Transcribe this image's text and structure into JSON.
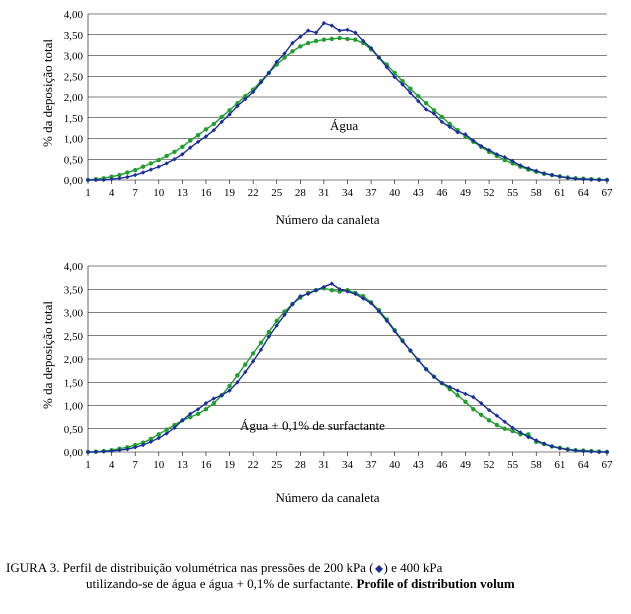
{
  "shared": {
    "x_axis_title": "Número da canaleta",
    "y_axis_title": "% da deposição total",
    "x_categories": [
      1,
      2,
      3,
      4,
      5,
      6,
      7,
      8,
      9,
      10,
      11,
      12,
      13,
      14,
      15,
      16,
      17,
      18,
      19,
      20,
      21,
      22,
      23,
      24,
      25,
      26,
      27,
      28,
      29,
      30,
      31,
      32,
      33,
      34,
      35,
      36,
      37,
      38,
      39,
      40,
      41,
      42,
      43,
      44,
      45,
      46,
      47,
      48,
      49,
      50,
      51,
      52,
      53,
      54,
      55,
      56,
      57,
      58,
      59,
      60,
      61,
      62,
      63,
      64,
      65,
      66,
      67
    ],
    "x_tick_labels": [
      "1",
      "4",
      "7",
      "10",
      "13",
      "16",
      "19",
      "22",
      "25",
      "28",
      "31",
      "34",
      "37",
      "40",
      "43",
      "46",
      "49",
      "52",
      "55",
      "58",
      "61",
      "64",
      "67"
    ],
    "x_tick_positions": [
      1,
      4,
      7,
      10,
      13,
      16,
      19,
      22,
      25,
      28,
      31,
      34,
      37,
      40,
      43,
      46,
      49,
      52,
      55,
      58,
      61,
      64,
      67
    ],
    "y_tick_labels": [
      "0,00",
      "0,50",
      "1,00",
      "1,50",
      "2,00",
      "2,50",
      "3,00",
      "3,50",
      "4,00"
    ],
    "y_tick_values": [
      0.0,
      0.5,
      1.0,
      1.5,
      2.0,
      2.5,
      3.0,
      3.5,
      4.0
    ],
    "ylim": [
      0.0,
      4.0
    ],
    "xlim": [
      1,
      67
    ],
    "grid_color": "#000000",
    "grid_width": 0.6,
    "background_color": "#ffffff",
    "line_width": 1.4,
    "marker_size": 2.2,
    "label_fontsize": 13,
    "tick_fontsize": 11,
    "series_style": {
      "blue": {
        "name": "200 kPa",
        "color": "#1b2e9b",
        "marker": "diamond"
      },
      "green": {
        "name": "400 kPa",
        "color": "#1f9e2e",
        "marker": "circle"
      }
    }
  },
  "chart1": {
    "type": "line",
    "inner_label": "Água",
    "series": {
      "blue": [
        0.0,
        0.0,
        0.0,
        0.02,
        0.04,
        0.07,
        0.12,
        0.18,
        0.25,
        0.32,
        0.4,
        0.5,
        0.62,
        0.78,
        0.92,
        1.05,
        1.2,
        1.4,
        1.58,
        1.78,
        1.95,
        2.12,
        2.35,
        2.58,
        2.85,
        3.05,
        3.3,
        3.45,
        3.6,
        3.55,
        3.78,
        3.72,
        3.6,
        3.62,
        3.55,
        3.35,
        3.18,
        2.95,
        2.72,
        2.48,
        2.3,
        2.1,
        1.9,
        1.7,
        1.6,
        1.4,
        1.28,
        1.15,
        1.1,
        0.95,
        0.82,
        0.72,
        0.62,
        0.55,
        0.45,
        0.35,
        0.28,
        0.22,
        0.16,
        0.12,
        0.08,
        0.05,
        0.03,
        0.02,
        0.01,
        0.0,
        0.0
      ],
      "green": [
        0.0,
        0.02,
        0.04,
        0.08,
        0.12,
        0.18,
        0.24,
        0.32,
        0.4,
        0.48,
        0.58,
        0.68,
        0.8,
        0.95,
        1.08,
        1.22,
        1.35,
        1.52,
        1.68,
        1.85,
        2.02,
        2.18,
        2.38,
        2.58,
        2.78,
        2.95,
        3.1,
        3.22,
        3.3,
        3.35,
        3.38,
        3.4,
        3.42,
        3.4,
        3.38,
        3.3,
        3.15,
        2.95,
        2.78,
        2.58,
        2.38,
        2.2,
        2.02,
        1.85,
        1.68,
        1.52,
        1.35,
        1.2,
        1.05,
        0.92,
        0.8,
        0.68,
        0.58,
        0.48,
        0.4,
        0.32,
        0.25,
        0.2,
        0.15,
        0.12,
        0.09,
        0.06,
        0.04,
        0.03,
        0.02,
        0.01,
        0.0
      ]
    }
  },
  "chart2": {
    "type": "line",
    "inner_label": "Água + 0,1% de surfactante",
    "series": {
      "blue": [
        0.0,
        0.0,
        0.01,
        0.02,
        0.04,
        0.06,
        0.1,
        0.15,
        0.22,
        0.3,
        0.4,
        0.52,
        0.68,
        0.82,
        0.92,
        1.05,
        1.15,
        1.22,
        1.32,
        1.5,
        1.72,
        1.95,
        2.2,
        2.48,
        2.72,
        2.95,
        3.18,
        3.35,
        3.4,
        3.48,
        3.55,
        3.62,
        3.5,
        3.45,
        3.4,
        3.3,
        3.2,
        3.02,
        2.82,
        2.6,
        2.38,
        2.18,
        1.98,
        1.78,
        1.62,
        1.48,
        1.4,
        1.32,
        1.25,
        1.18,
        1.05,
        0.9,
        0.78,
        0.65,
        0.52,
        0.42,
        0.32,
        0.25,
        0.18,
        0.12,
        0.08,
        0.05,
        0.03,
        0.02,
        0.01,
        0.0,
        0.0
      ],
      "green": [
        0.0,
        0.01,
        0.02,
        0.04,
        0.07,
        0.1,
        0.15,
        0.2,
        0.28,
        0.38,
        0.48,
        0.58,
        0.68,
        0.75,
        0.82,
        0.92,
        1.05,
        1.22,
        1.42,
        1.65,
        1.88,
        2.12,
        2.35,
        2.58,
        2.82,
        3.02,
        3.18,
        3.32,
        3.42,
        3.48,
        3.52,
        3.48,
        3.45,
        3.48,
        3.42,
        3.35,
        3.22,
        3.05,
        2.85,
        2.62,
        2.4,
        2.18,
        1.98,
        1.78,
        1.62,
        1.48,
        1.35,
        1.22,
        1.08,
        0.92,
        0.8,
        0.68,
        0.58,
        0.5,
        0.45,
        0.38,
        0.38,
        0.22,
        0.17,
        0.12,
        0.09,
        0.06,
        0.04,
        0.03,
        0.02,
        0.01,
        0.0
      ]
    }
  },
  "caption": {
    "line1_prefix": "IGURA 3. Perfil  de  distribuição  volumétrica  nas  pressões  de  200  kPa  (",
    "line1_middle": ")  e  400  kPa",
    "line2_plain": "utilizando-se de água e água + 0,1% de surfactante. ",
    "line2_bold": "Profile of distribution volum",
    "legend_diamond_color": "#1b2e9b"
  }
}
